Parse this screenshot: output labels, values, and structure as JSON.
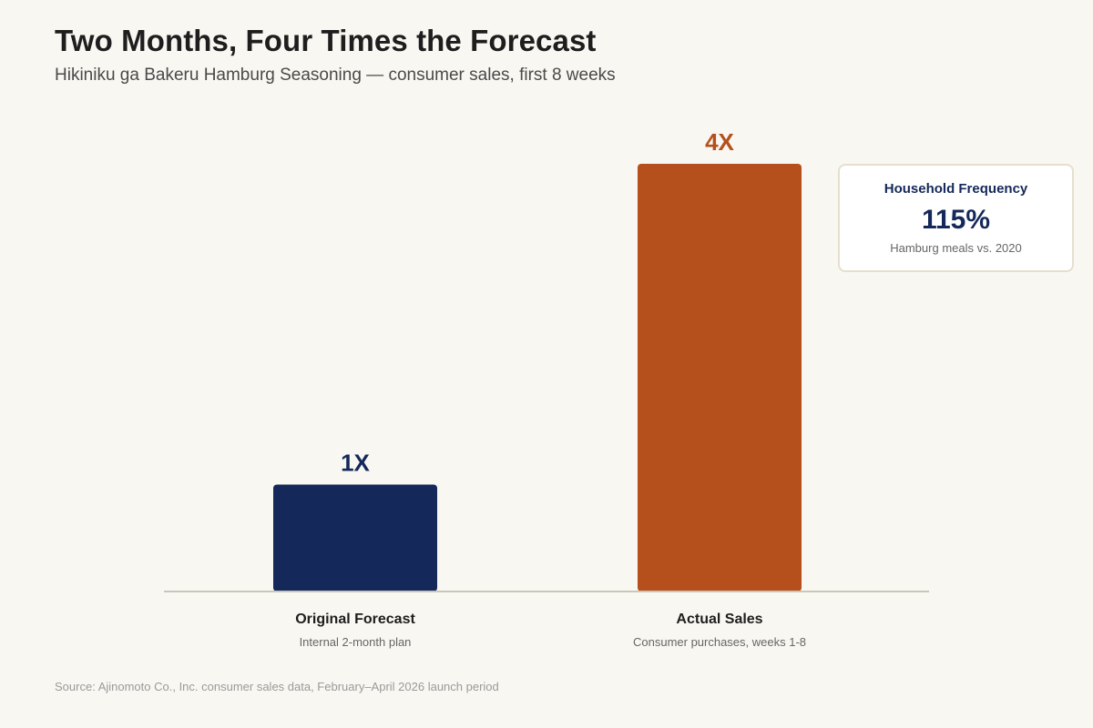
{
  "title": "Two Months, Four Times the Forecast",
  "subtitle": "Hikiniku ga Bakeru Hamburg Seasoning — consumer sales, first 8 weeks",
  "chart_data": {
    "type": "bar",
    "categories": [
      "Original Forecast",
      "Actual Sales"
    ],
    "category_notes": [
      "Internal 2-month plan",
      "Consumer purchases, weeks 1-8"
    ],
    "values": [
      1,
      4
    ],
    "value_labels": [
      "1X",
      "4X"
    ],
    "colors": [
      "#14285a",
      "#b5501c"
    ],
    "ylim": [
      0,
      4
    ],
    "grid": false,
    "legend": "none"
  },
  "callout": {
    "label": "Household Frequency",
    "value": "115%",
    "note": "Hamburg meals vs. 2020"
  },
  "source": "Source: Ajinomoto Co., Inc. consumer sales data, February–April 2026 launch period",
  "colors": {
    "background": "#f9f7f2",
    "axis": "#cbc6b9",
    "navy": "#14285a",
    "rust": "#b5501c"
  }
}
